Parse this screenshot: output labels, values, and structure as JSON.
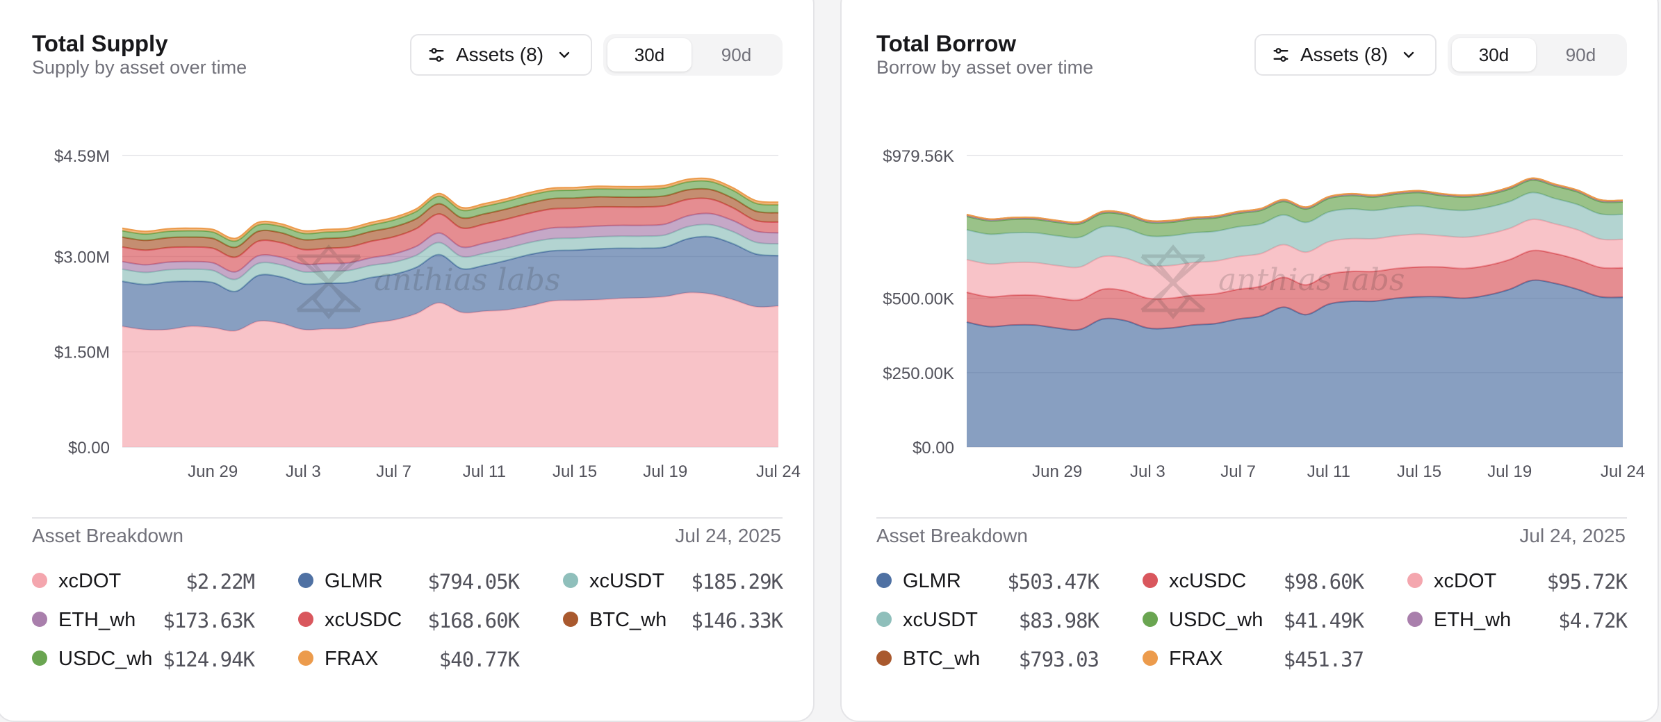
{
  "colors": {
    "xcDOT": "#f4a6ae",
    "GLMR": "#4f71a3",
    "xcUSDT": "#8fbfbb",
    "ETH_wh": "#a97fac",
    "xcUSDC": "#d9575d",
    "BTC_wh": "#a9592e",
    "USDC_wh": "#6aa551",
    "FRAX": "#ec9b4c"
  },
  "watermark": "anthias labs",
  "panels": [
    {
      "title": "Total Supply",
      "subtitle": "Supply by asset over time",
      "assets_label": "Assets (8)",
      "range_options": [
        "30d",
        "90d"
      ],
      "range_selected": "30d",
      "breakdown_title": "Asset Breakdown",
      "breakdown_date": "Jul 24, 2025",
      "legend": [
        {
          "name": "xcDOT",
          "value": "$2.22M"
        },
        {
          "name": "GLMR",
          "value": "$794.05K"
        },
        {
          "name": "xcUSDT",
          "value": "$185.29K"
        },
        {
          "name": "ETH_wh",
          "value": "$173.63K"
        },
        {
          "name": "xcUSDC",
          "value": "$168.60K"
        },
        {
          "name": "BTC_wh",
          "value": "$146.33K"
        },
        {
          "name": "USDC_wh",
          "value": "$124.94K"
        },
        {
          "name": "FRAX",
          "value": "$40.77K"
        }
      ]
    },
    {
      "title": "Total Borrow",
      "subtitle": "Borrow by asset over time",
      "assets_label": "Assets (8)",
      "range_options": [
        "30d",
        "90d"
      ],
      "range_selected": "30d",
      "breakdown_title": "Asset Breakdown",
      "breakdown_date": "Jul 24, 2025",
      "legend": [
        {
          "name": "GLMR",
          "value": "$503.47K"
        },
        {
          "name": "xcUSDC",
          "value": "$98.60K"
        },
        {
          "name": "xcDOT",
          "value": "$95.72K"
        },
        {
          "name": "xcUSDT",
          "value": "$83.98K"
        },
        {
          "name": "USDC_wh",
          "value": "$41.49K"
        },
        {
          "name": "ETH_wh",
          "value": "$4.72K"
        },
        {
          "name": "BTC_wh",
          "value": "$793.03"
        },
        {
          "name": "FRAX",
          "value": "$451.37"
        }
      ]
    }
  ],
  "chart_data": [
    {
      "type": "area",
      "stacked": true,
      "title": "Total Supply",
      "x_tick_labels": [
        "Jun 29",
        "Jul 3",
        "Jul 7",
        "Jul 11",
        "Jul 15",
        "Jul 19",
        "Jul 24"
      ],
      "x_tick_days": [
        4,
        8,
        12,
        16,
        20,
        24,
        29
      ],
      "x_range_days": [
        0,
        29
      ],
      "y_ticks": [
        {
          "value": 0,
          "label": "$0.00"
        },
        {
          "value": 1500000,
          "label": "$1.50M"
        },
        {
          "value": 3000000,
          "label": "$3.00M"
        },
        {
          "value": 4590000,
          "label": "$4.59M"
        }
      ],
      "ylim": [
        0,
        4590000
      ],
      "x": [
        0,
        1,
        2,
        3,
        4,
        5,
        6,
        7,
        8,
        9,
        10,
        11,
        12,
        13,
        14,
        15,
        16,
        17,
        18,
        19,
        20,
        21,
        22,
        23,
        24,
        25,
        26,
        27,
        28,
        29
      ],
      "series": [
        {
          "name": "xcDOT",
          "values": [
            1900000,
            1850000,
            1850000,
            1900000,
            1880000,
            1830000,
            1980000,
            1950000,
            1850000,
            1860000,
            1870000,
            1950000,
            2000000,
            2100000,
            2270000,
            2120000,
            2140000,
            2160000,
            2220000,
            2300000,
            2310000,
            2320000,
            2340000,
            2350000,
            2370000,
            2430000,
            2410000,
            2320000,
            2210000,
            2220000
          ]
        },
        {
          "name": "GLMR",
          "values": [
            710000,
            710000,
            750000,
            710000,
            710000,
            620000,
            720000,
            730000,
            720000,
            720000,
            720000,
            720000,
            720000,
            730000,
            760000,
            690000,
            720000,
            780000,
            810000,
            790000,
            790000,
            800000,
            790000,
            780000,
            780000,
            850000,
            900000,
            880000,
            830000,
            794050
          ]
        },
        {
          "name": "xcUSDT",
          "values": [
            190000,
            190000,
            190000,
            190000,
            190000,
            190000,
            190000,
            190000,
            190000,
            190000,
            190000,
            190000,
            190000,
            190000,
            190000,
            190000,
            190000,
            190000,
            190000,
            190000,
            190000,
            190000,
            190000,
            190000,
            190000,
            190000,
            190000,
            190000,
            185290,
            185290
          ]
        },
        {
          "name": "ETH_wh",
          "values": [
            120000,
            120000,
            120000,
            120000,
            120000,
            120000,
            120000,
            120000,
            120000,
            120000,
            120000,
            120000,
            130000,
            140000,
            150000,
            150000,
            160000,
            160000,
            160000,
            170000,
            170000,
            170000,
            170000,
            170000,
            170000,
            170000,
            175000,
            175000,
            173630,
            173630
          ]
        },
        {
          "name": "xcUSDC",
          "values": [
            230000,
            230000,
            230000,
            230000,
            230000,
            230000,
            230000,
            230000,
            230000,
            240000,
            250000,
            260000,
            270000,
            280000,
            300000,
            300000,
            300000,
            300000,
            300000,
            300000,
            300000,
            300000,
            290000,
            290000,
            290000,
            260000,
            230000,
            200000,
            168600,
            168600
          ]
        },
        {
          "name": "BTC_wh",
          "values": [
            155000,
            155000,
            155000,
            155000,
            155000,
            155000,
            155000,
            155000,
            155000,
            155000,
            155000,
            155000,
            155000,
            155000,
            160000,
            160000,
            160000,
            160000,
            160000,
            160000,
            160000,
            160000,
            155000,
            155000,
            155000,
            150000,
            150000,
            150000,
            146330,
            146330
          ]
        },
        {
          "name": "USDC_wh",
          "values": [
            100000,
            100000,
            100000,
            100000,
            100000,
            100000,
            100000,
            100000,
            100000,
            100000,
            100000,
            100000,
            110000,
            115000,
            120000,
            120000,
            120000,
            120000,
            125000,
            125000,
            125000,
            125000,
            125000,
            125000,
            125000,
            125000,
            125000,
            125000,
            124940,
            124940
          ]
        },
        {
          "name": "FRAX",
          "values": [
            40000,
            40000,
            40000,
            40000,
            40000,
            40000,
            40000,
            40000,
            40000,
            40000,
            40000,
            40000,
            40000,
            40000,
            40000,
            40000,
            40000,
            40000,
            40000,
            40000,
            40000,
            40000,
            40000,
            40000,
            40000,
            40000,
            40000,
            40000,
            40770,
            40770
          ]
        }
      ]
    },
    {
      "type": "area",
      "stacked": true,
      "title": "Total Borrow",
      "x_tick_labels": [
        "Jun 29",
        "Jul 3",
        "Jul 7",
        "Jul 11",
        "Jul 15",
        "Jul 19",
        "Jul 24"
      ],
      "x_tick_days": [
        4,
        8,
        12,
        16,
        20,
        24,
        29
      ],
      "x_range_days": [
        0,
        29
      ],
      "y_ticks": [
        {
          "value": 0,
          "label": "$0.00"
        },
        {
          "value": 250000,
          "label": "$250.00K"
        },
        {
          "value": 500000,
          "label": "$500.00K"
        },
        {
          "value": 979560,
          "label": "$979.56K"
        }
      ],
      "ylim": [
        0,
        979560
      ],
      "x": [
        0,
        1,
        2,
        3,
        4,
        5,
        6,
        7,
        8,
        9,
        10,
        11,
        12,
        13,
        14,
        15,
        16,
        17,
        18,
        19,
        20,
        21,
        22,
        23,
        24,
        25,
        26,
        27,
        28,
        29
      ],
      "series": [
        {
          "name": "GLMR",
          "values": [
            420000,
            405000,
            410000,
            410000,
            400000,
            395000,
            430000,
            425000,
            400000,
            400000,
            410000,
            415000,
            430000,
            440000,
            470000,
            445000,
            480000,
            490000,
            490000,
            500000,
            505000,
            505000,
            500000,
            510000,
            530000,
            560000,
            550000,
            530000,
            505000,
            503470
          ]
        },
        {
          "name": "xcUSDC",
          "values": [
            100000,
            100000,
            100000,
            100000,
            100000,
            100000,
            100000,
            100000,
            100000,
            100000,
            100000,
            100000,
            100000,
            100000,
            100000,
            100000,
            100000,
            100000,
            100000,
            100000,
            100000,
            100000,
            100000,
            100000,
            100000,
            100000,
            100000,
            100000,
            98600,
            98600
          ]
        },
        {
          "name": "xcDOT",
          "values": [
            110000,
            110000,
            110000,
            110000,
            110000,
            110000,
            110000,
            110000,
            110000,
            110000,
            110000,
            110000,
            110000,
            110000,
            110000,
            110000,
            110000,
            110000,
            110000,
            110000,
            110000,
            105000,
            105000,
            105000,
            105000,
            105000,
            100000,
            100000,
            95720,
            95720
          ]
        },
        {
          "name": "xcUSDT",
          "values": [
            100000,
            100000,
            100000,
            100000,
            100000,
            100000,
            100000,
            100000,
            100000,
            100000,
            100000,
            100000,
            100000,
            100000,
            100000,
            100000,
            100000,
            100000,
            95000,
            95000,
            95000,
            90000,
            90000,
            90000,
            90000,
            90000,
            85000,
            85000,
            83980,
            83980
          ]
        },
        {
          "name": "USDC_wh",
          "values": [
            45000,
            45000,
            45000,
            45000,
            45000,
            45000,
            45000,
            45000,
            45000,
            45000,
            45000,
            45000,
            45000,
            45000,
            45000,
            45000,
            45000,
            45000,
            45000,
            45000,
            45000,
            45000,
            45000,
            42000,
            42000,
            42000,
            42000,
            42000,
            41490,
            41490
          ]
        },
        {
          "name": "ETH_wh",
          "values": [
            5000,
            5000,
            5000,
            5000,
            5000,
            5000,
            5000,
            5000,
            5000,
            5000,
            5000,
            5000,
            5000,
            5000,
            5000,
            5000,
            5000,
            5000,
            5000,
            5000,
            5000,
            5000,
            5000,
            5000,
            5000,
            5000,
            5000,
            5000,
            4720,
            4720
          ]
        },
        {
          "name": "BTC_wh",
          "values": [
            800,
            800,
            800,
            800,
            800,
            800,
            800,
            800,
            800,
            800,
            800,
            800,
            800,
            800,
            800,
            800,
            800,
            800,
            800,
            800,
            800,
            800,
            800,
            800,
            800,
            800,
            800,
            800,
            793.03,
            793.03
          ]
        },
        {
          "name": "FRAX",
          "values": [
            450,
            450,
            450,
            450,
            450,
            450,
            450,
            450,
            450,
            450,
            450,
            450,
            450,
            450,
            450,
            450,
            450,
            450,
            450,
            450,
            450,
            450,
            450,
            450,
            450,
            450,
            450,
            450,
            451.37,
            451.37
          ]
        }
      ]
    }
  ]
}
